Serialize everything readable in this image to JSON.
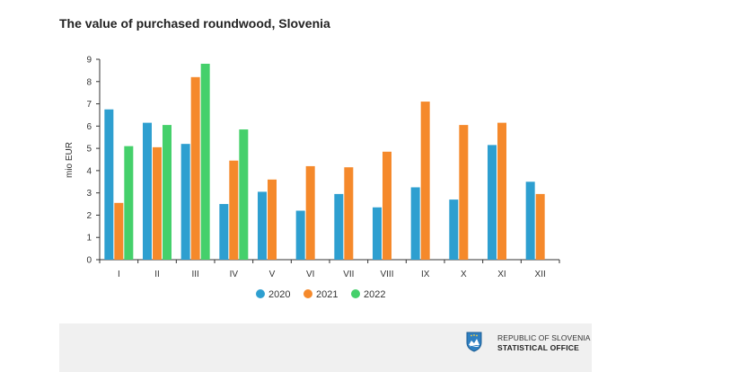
{
  "chart_data": {
    "type": "bar",
    "title": "The value of purchased roundwood, Slovenia",
    "ylabel": "mio EUR",
    "xlabel": "",
    "ylim": [
      0,
      9
    ],
    "yticks": [
      0,
      1,
      2,
      3,
      4,
      5,
      6,
      7,
      8,
      9
    ],
    "categories": [
      "I",
      "II",
      "III",
      "IV",
      "V",
      "VI",
      "VII",
      "VIII",
      "IX",
      "X",
      "XI",
      "XII"
    ],
    "series": [
      {
        "name": "2020",
        "color": "#2e9fd0",
        "values": [
          6.75,
          6.15,
          5.2,
          2.5,
          3.05,
          2.2,
          2.95,
          2.35,
          3.25,
          2.7,
          5.15,
          3.5
        ]
      },
      {
        "name": "2021",
        "color": "#f5892b",
        "values": [
          2.55,
          5.05,
          8.2,
          4.45,
          3.6,
          4.2,
          4.15,
          4.85,
          7.1,
          6.05,
          6.15,
          2.95
        ]
      },
      {
        "name": "2022",
        "color": "#45d06b",
        "values": [
          5.1,
          6.05,
          8.8,
          5.85,
          null,
          null,
          null,
          null,
          null,
          null,
          null,
          null
        ]
      }
    ],
    "legend": "bottom-center",
    "grid": false
  },
  "footer": {
    "logo_icon": "slovenia-coat-of-arms-icon",
    "org_line1": "REPUBLIC OF SLOVENIA",
    "org_line2": "STATISTICAL OFFICE"
  }
}
